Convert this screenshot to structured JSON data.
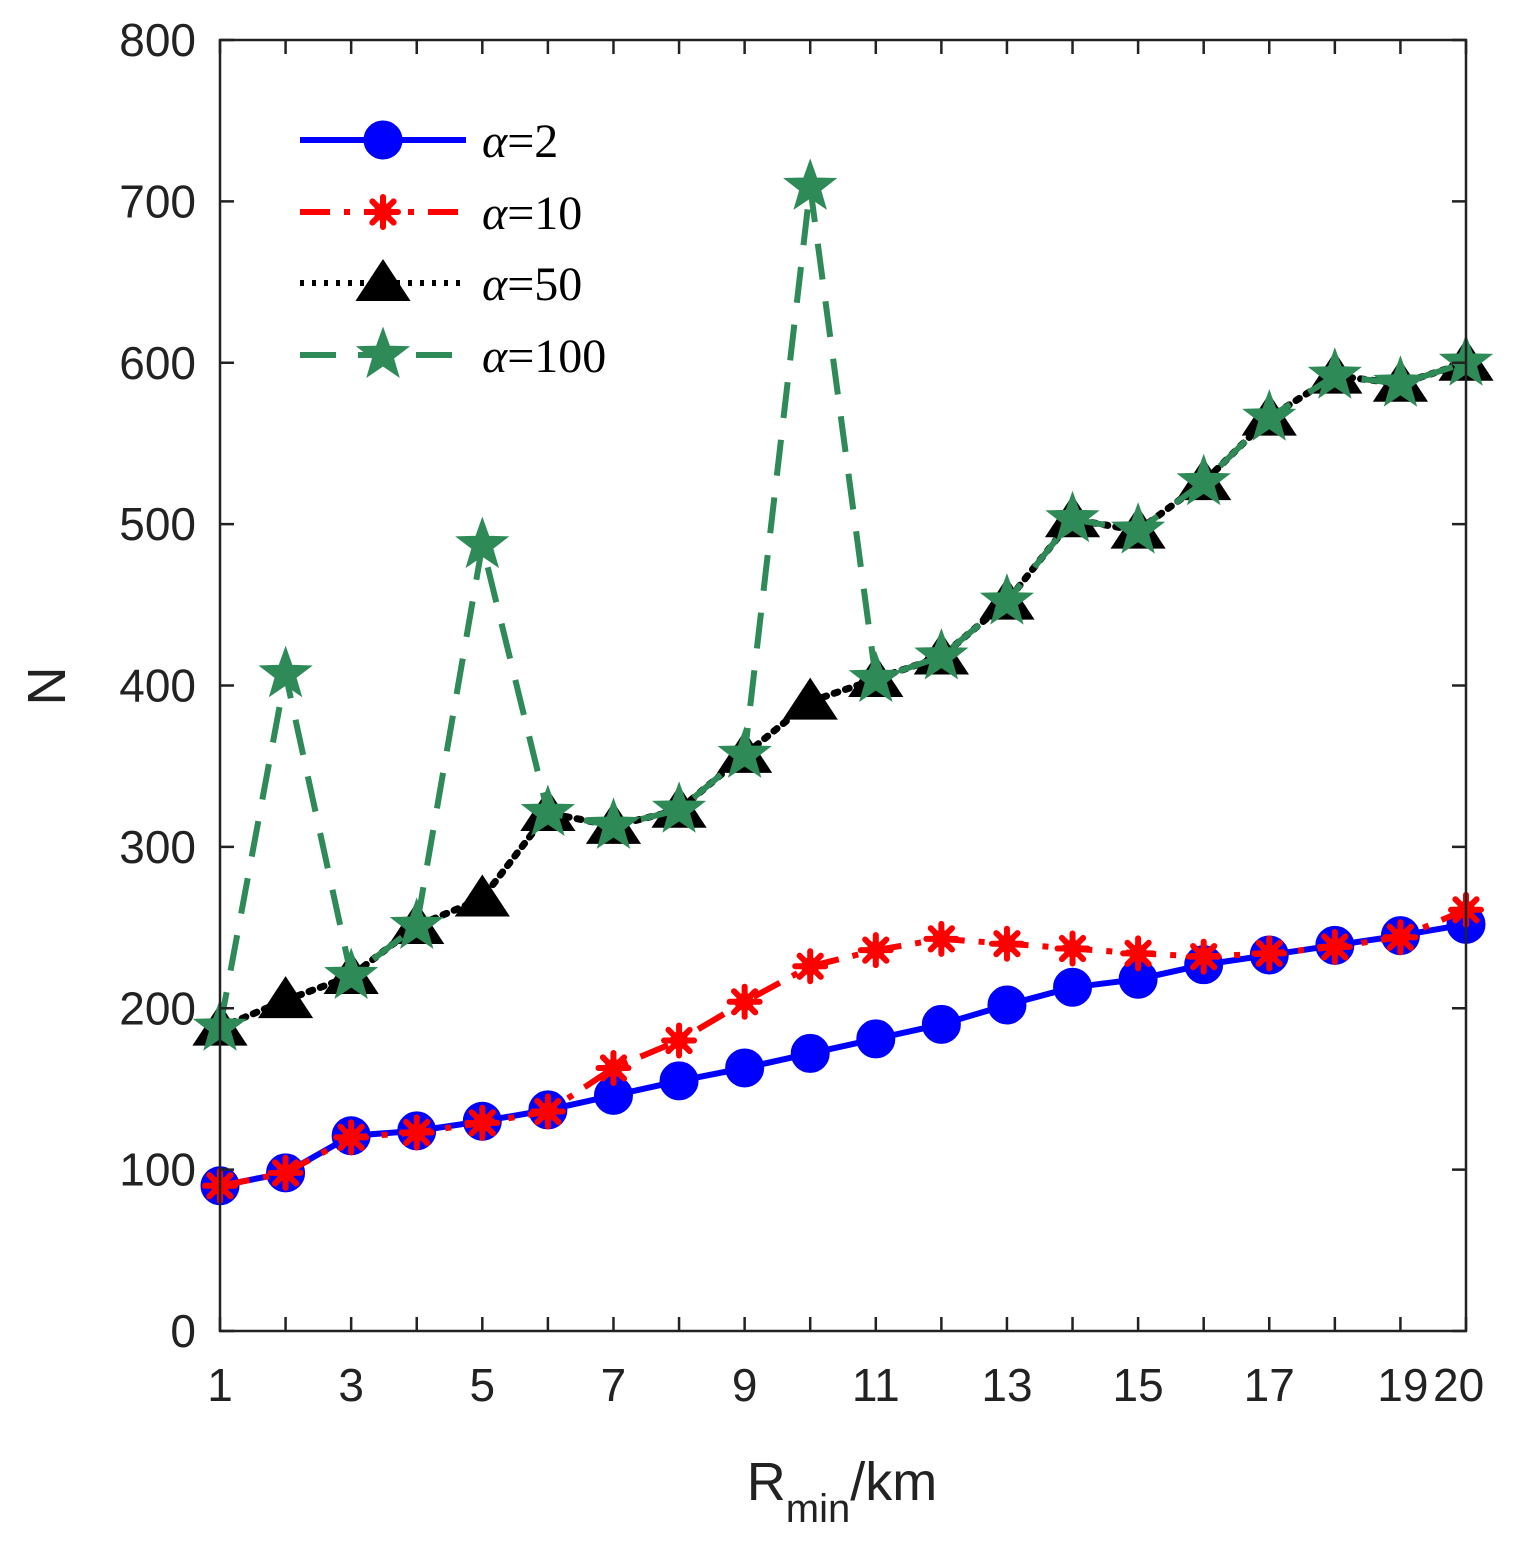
{
  "chart_data": {
    "type": "line",
    "xlabel_main": "R",
    "xlabel_sub": "min",
    "xlabel_unit": "/km",
    "ylabel": "N",
    "xlim": [
      1,
      20
    ],
    "ylim": [
      0,
      800
    ],
    "x": [
      1,
      2,
      3,
      4,
      5,
      6,
      7,
      8,
      9,
      10,
      11,
      12,
      13,
      14,
      15,
      16,
      17,
      18,
      19,
      20
    ],
    "x_ticks": [
      1,
      3,
      5,
      7,
      9,
      11,
      13,
      15,
      17,
      19,
      20
    ],
    "x_tick_labels": [
      "1",
      "3",
      "5",
      "7",
      "9",
      "11",
      "13",
      "15",
      "17",
      "19",
      "20"
    ],
    "y_ticks": [
      0,
      100,
      200,
      300,
      400,
      500,
      600,
      700,
      800
    ],
    "y_tick_labels": [
      "0",
      "100",
      "200",
      "300",
      "400",
      "500",
      "600",
      "700",
      "800"
    ],
    "legend_position": "top-left",
    "series": [
      {
        "name": "α=2",
        "greek": "α",
        "label_rest": "=2",
        "color": "#0000ff",
        "marker": "circle",
        "line": "solid",
        "values": [
          90,
          98,
          121,
          124,
          130,
          137,
          146,
          155,
          163,
          172,
          181,
          190,
          202,
          213,
          218,
          227,
          233,
          239,
          245,
          252
        ]
      },
      {
        "name": "α=10",
        "greek": "α",
        "label_rest": "=10",
        "color": "#ff0000",
        "marker": "asterisk",
        "line": "dashdot",
        "values": [
          90,
          98,
          120,
          123,
          129,
          136,
          163,
          180,
          204,
          226,
          236,
          243,
          240,
          237,
          234,
          232,
          234,
          238,
          244,
          261
        ]
      },
      {
        "name": "α=50",
        "greek": "α",
        "label_rest": "=50",
        "color": "#000000",
        "marker": "triangle",
        "line": "dotted",
        "values": [
          188,
          205,
          220,
          251,
          268,
          321,
          313,
          323,
          357,
          390,
          404,
          418,
          452,
          503,
          496,
          526,
          566,
          592,
          587,
          600
        ]
      },
      {
        "name": "α=100",
        "greek": "α",
        "label_rest": "=100",
        "color": "#2e8b57",
        "marker": "star",
        "line": "dashed",
        "values": [
          188,
          407,
          220,
          251,
          487,
          321,
          313,
          323,
          357,
          709,
          404,
          418,
          452,
          503,
          496,
          526,
          566,
          592,
          587,
          600
        ]
      }
    ]
  }
}
